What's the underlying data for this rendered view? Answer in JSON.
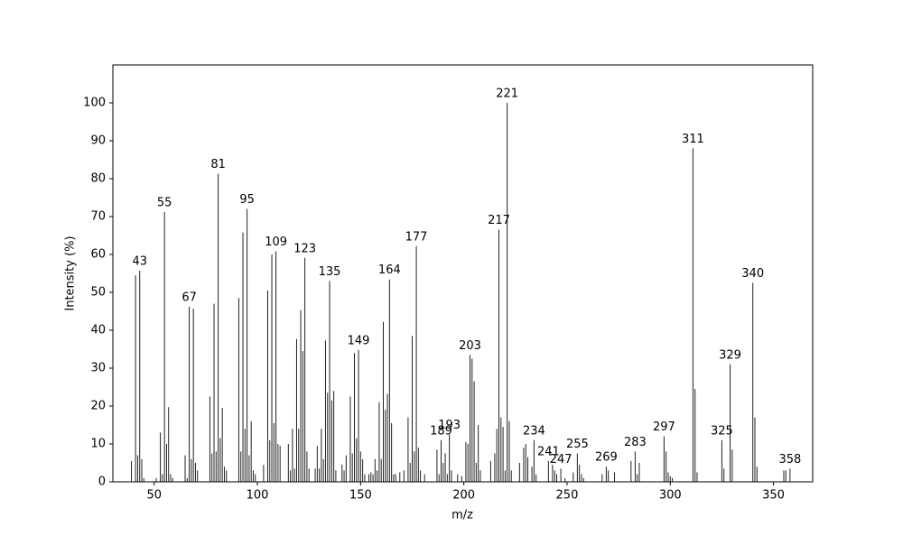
{
  "chart_data": {
    "type": "bar",
    "x_label": "m/z",
    "y_label": "Intensity (%)",
    "color": "#222222",
    "x": [
      39,
      41,
      42,
      43,
      44,
      45,
      51,
      53,
      54,
      55,
      56,
      57,
      58,
      59,
      65,
      66,
      67,
      68,
      69,
      70,
      71,
      77,
      78,
      79,
      80,
      81,
      82,
      83,
      84,
      85,
      91,
      92,
      93,
      94,
      95,
      96,
      97,
      98,
      99,
      103,
      105,
      106,
      107,
      108,
      109,
      110,
      111,
      115,
      116,
      117,
      118,
      119,
      120,
      121,
      122,
      123,
      124,
      125,
      128,
      129,
      130,
      131,
      132,
      133,
      134,
      135,
      136,
      137,
      138,
      141,
      142,
      143,
      145,
      146,
      147,
      148,
      149,
      150,
      151,
      152,
      154,
      155,
      156,
      157,
      158,
      159,
      160,
      161,
      162,
      163,
      164,
      165,
      166,
      167,
      169,
      171,
      173,
      174,
      175,
      176,
      177,
      178,
      179,
      181,
      187,
      188,
      189,
      190,
      191,
      192,
      193,
      194,
      197,
      199,
      201,
      202,
      203,
      204,
      205,
      206,
      207,
      208,
      213,
      215,
      216,
      217,
      218,
      219,
      220,
      221,
      222,
      223,
      227,
      229,
      230,
      231,
      233,
      234,
      235,
      241,
      243,
      244,
      245,
      247,
      249,
      253,
      255,
      256,
      257,
      258,
      267,
      269,
      270,
      273,
      281,
      283,
      284,
      285,
      297,
      298,
      299,
      300,
      301,
      311,
      312,
      313,
      325,
      326,
      329,
      330,
      340,
      341,
      342,
      355,
      356,
      358
    ],
    "values": [
      5.5,
      54.5,
      7,
      55.7,
      6,
      1,
      1,
      13,
      2,
      71.2,
      10,
      19.7,
      2,
      1,
      7,
      1,
      46.2,
      6,
      45.7,
      5,
      3,
      22.5,
      7.5,
      47,
      8,
      81.3,
      11.5,
      19.5,
      4,
      3,
      48.5,
      8,
      65.8,
      14,
      72,
      7,
      16,
      3,
      2,
      4.5,
      50.5,
      11,
      60,
      15.5,
      60.8,
      10,
      9.5,
      10,
      3,
      14,
      3.5,
      37.7,
      14,
      45.3,
      34.5,
      59.1,
      8,
      3.5,
      3.5,
      9.5,
      3.5,
      14,
      6,
      37.3,
      23.5,
      53,
      21.5,
      24,
      3,
      4.5,
      3,
      7,
      22.5,
      7.5,
      34,
      11.5,
      34.8,
      8,
      6,
      2,
      2,
      2.5,
      2,
      6,
      3,
      21,
      6,
      42.2,
      19,
      23.2,
      53.4,
      15.5,
      2,
      2,
      2.5,
      3,
      17,
      5,
      38.5,
      8,
      62.2,
      9,
      3,
      2,
      8.5,
      2,
      11,
      5,
      7.5,
      2,
      12.5,
      3,
      2,
      1.5,
      10.5,
      10,
      33.5,
      32.5,
      26.5,
      5,
      15,
      3,
      5.5,
      7.5,
      14,
      66.5,
      17,
      14.5,
      3,
      100,
      16,
      3,
      5,
      9,
      10,
      6.5,
      4,
      11,
      2,
      5.5,
      4.5,
      3,
      2,
      3.5,
      1,
      2.5,
      7.5,
      4.5,
      2,
      1,
      2,
      4,
      3,
      2.5,
      5.5,
      8,
      2,
      5,
      12,
      8,
      2.5,
      1.5,
      1,
      88,
      24.5,
      2.5,
      11,
      3.5,
      31,
      8.5,
      52.5,
      17,
      4,
      3,
      3,
      3.5
    ],
    "annotations": [
      {
        "x": 43,
        "label": "43"
      },
      {
        "x": 55,
        "label": "55"
      },
      {
        "x": 67,
        "label": "67"
      },
      {
        "x": 81,
        "label": "81"
      },
      {
        "x": 95,
        "label": "95"
      },
      {
        "x": 109,
        "label": "109"
      },
      {
        "x": 123,
        "label": "123"
      },
      {
        "x": 135,
        "label": "135"
      },
      {
        "x": 149,
        "label": "149"
      },
      {
        "x": 164,
        "label": "164"
      },
      {
        "x": 177,
        "label": "177"
      },
      {
        "x": 189,
        "label": "189"
      },
      {
        "x": 193,
        "label": "193"
      },
      {
        "x": 203,
        "label": "203"
      },
      {
        "x": 217,
        "label": "217"
      },
      {
        "x": 221,
        "label": "221"
      },
      {
        "x": 234,
        "label": "234"
      },
      {
        "x": 241,
        "label": "241"
      },
      {
        "x": 247,
        "label": "247"
      },
      {
        "x": 255,
        "label": "255"
      },
      {
        "x": 269,
        "label": "269"
      },
      {
        "x": 283,
        "label": "283"
      },
      {
        "x": 297,
        "label": "297"
      },
      {
        "x": 311,
        "label": "311"
      },
      {
        "x": 325,
        "label": "325"
      },
      {
        "x": 329,
        "label": "329"
      },
      {
        "x": 340,
        "label": "340"
      },
      {
        "x": 358,
        "label": "358"
      }
    ],
    "xlim": [
      30,
      369
    ],
    "ylim": [
      0,
      110
    ],
    "xticks": [
      50,
      100,
      150,
      200,
      250,
      300,
      350
    ],
    "yticks": [
      0,
      10,
      20,
      30,
      40,
      50,
      60,
      70,
      80,
      90,
      100
    ]
  }
}
